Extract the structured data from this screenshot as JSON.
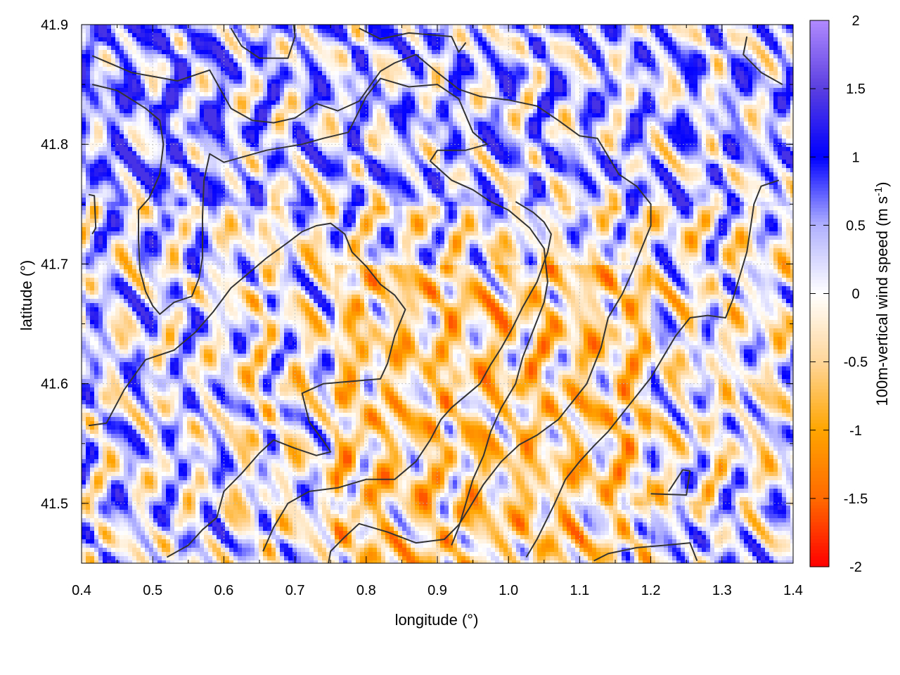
{
  "chart_data": {
    "type": "heatmap",
    "xlabel": "longitude (°)",
    "ylabel": "latitude (°)",
    "colorbar_label": "100m-vertical wind speed (m s",
    "colorbar_label_sup": "-1",
    "colorbar_label_end": ")",
    "xlim": [
      0.4,
      1.4
    ],
    "ylim": [
      41.45,
      41.9
    ],
    "x_ticks": [
      {
        "value": 0.4,
        "label": "0.4"
      },
      {
        "value": 0.5,
        "label": "0.5"
      },
      {
        "value": 0.6,
        "label": "0.6"
      },
      {
        "value": 0.7,
        "label": "0.7"
      },
      {
        "value": 0.8,
        "label": "0.8"
      },
      {
        "value": 0.9,
        "label": "0.9"
      },
      {
        "value": 1.0,
        "label": "1.0"
      },
      {
        "value": 1.1,
        "label": "1.1"
      },
      {
        "value": 1.2,
        "label": "1.2"
      },
      {
        "value": 1.3,
        "label": "1.3"
      },
      {
        "value": 1.4,
        "label": "1.4"
      }
    ],
    "y_ticks": [
      {
        "value": 41.5,
        "label": "41.5"
      },
      {
        "value": 41.6,
        "label": "41.6"
      },
      {
        "value": 41.7,
        "label": "41.7"
      },
      {
        "value": 41.8,
        "label": "41.8"
      },
      {
        "value": 41.9,
        "label": "41.9"
      }
    ],
    "colorbar": {
      "range": [
        -2,
        2
      ],
      "ticks": [
        {
          "value": 2,
          "label": "2"
        },
        {
          "value": 1.5,
          "label": "1.5"
        },
        {
          "value": 1,
          "label": "1"
        },
        {
          "value": 0.5,
          "label": "0.5"
        },
        {
          "value": 0,
          "label": "0"
        },
        {
          "value": -0.5,
          "label": "-0.5"
        },
        {
          "value": -1,
          "label": "-1"
        },
        {
          "value": -1.5,
          "label": "-1.5"
        },
        {
          "value": -2,
          "label": "-2"
        }
      ],
      "stops": [
        {
          "value": -2,
          "color": "#ff0000"
        },
        {
          "value": -1.5,
          "color": "#ff6a00"
        },
        {
          "value": -1,
          "color": "#ffa500"
        },
        {
          "value": -0.5,
          "color": "#ffd699"
        },
        {
          "value": 0,
          "color": "#ffffff"
        },
        {
          "value": 0.5,
          "color": "#b0b0ff"
        },
        {
          "value": 1,
          "color": "#0000ff"
        },
        {
          "value": 1.5,
          "color": "#5a3fe0"
        },
        {
          "value": 2,
          "color": "#b08aff"
        }
      ]
    },
    "grid": true,
    "contour_color": "#333333",
    "contours": [
      [
        [
          0.415,
          41.874
        ],
        [
          0.47,
          41.86
        ],
        [
          0.535,
          41.853
        ],
        [
          0.58,
          41.862
        ],
        [
          0.61,
          41.83
        ],
        [
          0.64,
          41.82
        ],
        [
          0.67,
          41.818
        ],
        [
          0.7,
          41.822
        ],
        [
          0.73,
          41.834
        ],
        [
          0.76,
          41.828
        ],
        [
          0.79,
          41.836
        ],
        [
          0.82,
          41.861
        ],
        [
          0.84,
          41.868
        ],
        [
          0.87,
          41.875
        ],
        [
          0.9,
          41.86
        ],
        [
          0.93,
          41.846
        ],
        [
          0.96,
          41.84
        ],
        [
          1.0,
          41.837
        ],
        [
          1.04,
          41.832
        ],
        [
          1.07,
          41.82
        ],
        [
          1.1,
          41.807
        ],
        [
          1.125,
          41.805
        ],
        [
          1.14,
          41.79
        ],
        [
          1.155,
          41.775
        ],
        [
          1.18,
          41.765
        ],
        [
          1.2,
          41.75
        ],
        [
          1.2,
          41.732
        ],
        [
          1.185,
          41.71
        ],
        [
          1.175,
          41.695
        ],
        [
          1.16,
          41.675
        ],
        [
          1.14,
          41.655
        ],
        [
          1.13,
          41.63
        ],
        [
          1.11,
          41.6
        ],
        [
          1.09,
          41.585
        ],
        [
          1.07,
          41.57
        ],
        [
          1.04,
          41.557
        ],
        [
          1.015,
          41.549
        ],
        [
          0.99,
          41.535
        ],
        [
          0.965,
          41.516
        ],
        [
          0.945,
          41.496
        ],
        [
          0.93,
          41.482
        ],
        [
          0.91,
          41.47
        ],
        [
          0.87,
          41.467
        ],
        [
          0.83,
          41.476
        ],
        [
          0.79,
          41.483
        ],
        [
          0.77,
          41.472
        ],
        [
          0.75,
          41.46
        ],
        [
          0.747,
          41.45
        ]
      ],
      [
        [
          0.415,
          41.85
        ],
        [
          0.45,
          41.845
        ],
        [
          0.49,
          41.83
        ],
        [
          0.51,
          41.82
        ],
        [
          0.515,
          41.8
        ],
        [
          0.51,
          41.775
        ],
        [
          0.495,
          41.755
        ],
        [
          0.48,
          41.745
        ],
        [
          0.48,
          41.72
        ],
        [
          0.482,
          41.695
        ],
        [
          0.49,
          41.677
        ],
        [
          0.5,
          41.665
        ],
        [
          0.51,
          41.658
        ],
        [
          0.53,
          41.668
        ],
        [
          0.555,
          41.673
        ],
        [
          0.565,
          41.688
        ],
        [
          0.57,
          41.705
        ],
        [
          0.57,
          41.74
        ],
        [
          0.572,
          41.77
        ],
        [
          0.58,
          41.792
        ],
        [
          0.6,
          41.785
        ],
        [
          0.63,
          41.79
        ],
        [
          0.66,
          41.795
        ],
        [
          0.68,
          41.797
        ],
        [
          0.71,
          41.8
        ],
        [
          0.74,
          41.805
        ],
        [
          0.775,
          41.81
        ],
        [
          0.8,
          41.84
        ],
        [
          0.82,
          41.855
        ],
        [
          0.86,
          41.848
        ],
        [
          0.9,
          41.85
        ],
        [
          0.93,
          41.838
        ],
        [
          0.95,
          41.81
        ],
        [
          0.97,
          41.8
        ],
        [
          0.94,
          41.795
        ],
        [
          0.9,
          41.795
        ],
        [
          0.89,
          41.786
        ],
        [
          0.92,
          41.77
        ],
        [
          0.95,
          41.762
        ],
        [
          0.975,
          41.752
        ],
        [
          1.0,
          41.745
        ],
        [
          1.03,
          41.73
        ],
        [
          1.05,
          41.713
        ],
        [
          1.055,
          41.685
        ],
        [
          1.05,
          41.668
        ],
        [
          1.035,
          41.645
        ],
        [
          1.02,
          41.622
        ],
        [
          1.01,
          41.6
        ],
        [
          0.99,
          41.58
        ],
        [
          0.975,
          41.56
        ],
        [
          0.965,
          41.54
        ],
        [
          0.95,
          41.52
        ],
        [
          0.94,
          41.5
        ],
        [
          0.93,
          41.48
        ],
        [
          0.92,
          41.465
        ]
      ],
      [
        [
          0.41,
          41.565
        ],
        [
          0.435,
          41.567
        ],
        [
          0.46,
          41.595
        ],
        [
          0.49,
          41.62
        ],
        [
          0.53,
          41.628
        ],
        [
          0.56,
          41.643
        ],
        [
          0.585,
          41.66
        ],
        [
          0.61,
          41.68
        ],
        [
          0.64,
          41.695
        ],
        [
          0.66,
          41.705
        ],
        [
          0.69,
          41.718
        ],
        [
          0.71,
          41.727
        ],
        [
          0.73,
          41.732
        ],
        [
          0.75,
          41.734
        ],
        [
          0.77,
          41.725
        ],
        [
          0.78,
          41.71
        ],
        [
          0.8,
          41.698
        ],
        [
          0.82,
          41.683
        ],
        [
          0.84,
          41.674
        ],
        [
          0.855,
          41.662
        ],
        [
          0.84,
          41.64
        ],
        [
          0.83,
          41.617
        ],
        [
          0.82,
          41.604
        ],
        [
          0.78,
          41.602
        ],
        [
          0.74,
          41.6
        ],
        [
          0.71,
          41.592
        ],
        [
          0.72,
          41.568
        ],
        [
          0.74,
          41.552
        ],
        [
          0.75,
          41.543
        ],
        [
          0.73,
          41.54
        ],
        [
          0.7,
          41.546
        ],
        [
          0.67,
          41.553
        ],
        [
          0.65,
          41.542
        ],
        [
          0.625,
          41.525
        ],
        [
          0.6,
          41.51
        ],
        [
          0.59,
          41.488
        ],
        [
          0.57,
          41.478
        ],
        [
          0.55,
          41.465
        ],
        [
          0.52,
          41.455
        ]
      ],
      [
        [
          0.655,
          41.46
        ],
        [
          0.67,
          41.48
        ],
        [
          0.69,
          41.5
        ],
        [
          0.72,
          41.51
        ],
        [
          0.76,
          41.513
        ],
        [
          0.8,
          41.52
        ],
        [
          0.84,
          41.52
        ],
        [
          0.87,
          41.535
        ],
        [
          0.89,
          41.553
        ],
        [
          0.905,
          41.57
        ],
        [
          0.92,
          41.58
        ],
        [
          0.94,
          41.59
        ],
        [
          0.96,
          41.6
        ],
        [
          0.975,
          41.616
        ],
        [
          0.99,
          41.63
        ],
        [
          1.005,
          41.646
        ],
        [
          1.02,
          41.664
        ],
        [
          1.04,
          41.685
        ],
        [
          1.055,
          41.71
        ],
        [
          1.06,
          41.725
        ],
        [
          1.05,
          41.735
        ],
        [
          1.035,
          41.743
        ],
        [
          1.01,
          41.752
        ]
      ],
      [
        [
          1.025,
          41.455
        ],
        [
          1.04,
          41.47
        ],
        [
          1.065,
          41.5
        ],
        [
          1.08,
          41.52
        ],
        [
          1.1,
          41.535
        ],
        [
          1.12,
          41.548
        ],
        [
          1.14,
          41.56
        ],
        [
          1.16,
          41.575
        ],
        [
          1.18,
          41.59
        ],
        [
          1.2,
          41.605
        ],
        [
          1.215,
          41.62
        ],
        [
          1.235,
          41.64
        ],
        [
          1.255,
          41.655
        ],
        [
          1.28,
          41.657
        ],
        [
          1.305,
          41.655
        ],
        [
          1.315,
          41.67
        ],
        [
          1.325,
          41.69
        ],
        [
          1.335,
          41.71
        ],
        [
          1.34,
          41.73
        ],
        [
          1.345,
          41.75
        ],
        [
          1.355,
          41.765
        ],
        [
          1.38,
          41.77
        ]
      ],
      [
        [
          1.12,
          41.452
        ],
        [
          1.14,
          41.458
        ],
        [
          1.18,
          41.463
        ],
        [
          1.22,
          41.465
        ],
        [
          1.255,
          41.467
        ],
        [
          1.265,
          41.452
        ]
      ],
      [
        [
          1.2,
          41.508
        ],
        [
          1.25,
          41.507
        ],
        [
          1.255,
          41.527
        ],
        [
          1.245,
          41.528
        ],
        [
          1.225,
          41.51
        ]
      ],
      [
        [
          1.335,
          41.89
        ],
        [
          1.33,
          41.875
        ],
        [
          1.355,
          41.86
        ],
        [
          1.385,
          41.85
        ]
      ],
      [
        [
          0.41,
          41.758
        ],
        [
          0.418,
          41.757
        ],
        [
          0.42,
          41.73
        ],
        [
          0.415,
          41.725
        ]
      ],
      [
        [
          0.61,
          41.897
        ],
        [
          0.625,
          41.882
        ],
        [
          0.65,
          41.872
        ],
        [
          0.69,
          41.872
        ],
        [
          0.7,
          41.89
        ],
        [
          0.698,
          41.9
        ]
      ],
      [
        [
          0.79,
          41.897
        ],
        [
          0.82,
          41.888
        ],
        [
          0.86,
          41.893
        ],
        [
          0.92,
          41.89
        ],
        [
          0.93,
          41.877
        ],
        [
          0.94,
          41.885
        ]
      ]
    ]
  }
}
